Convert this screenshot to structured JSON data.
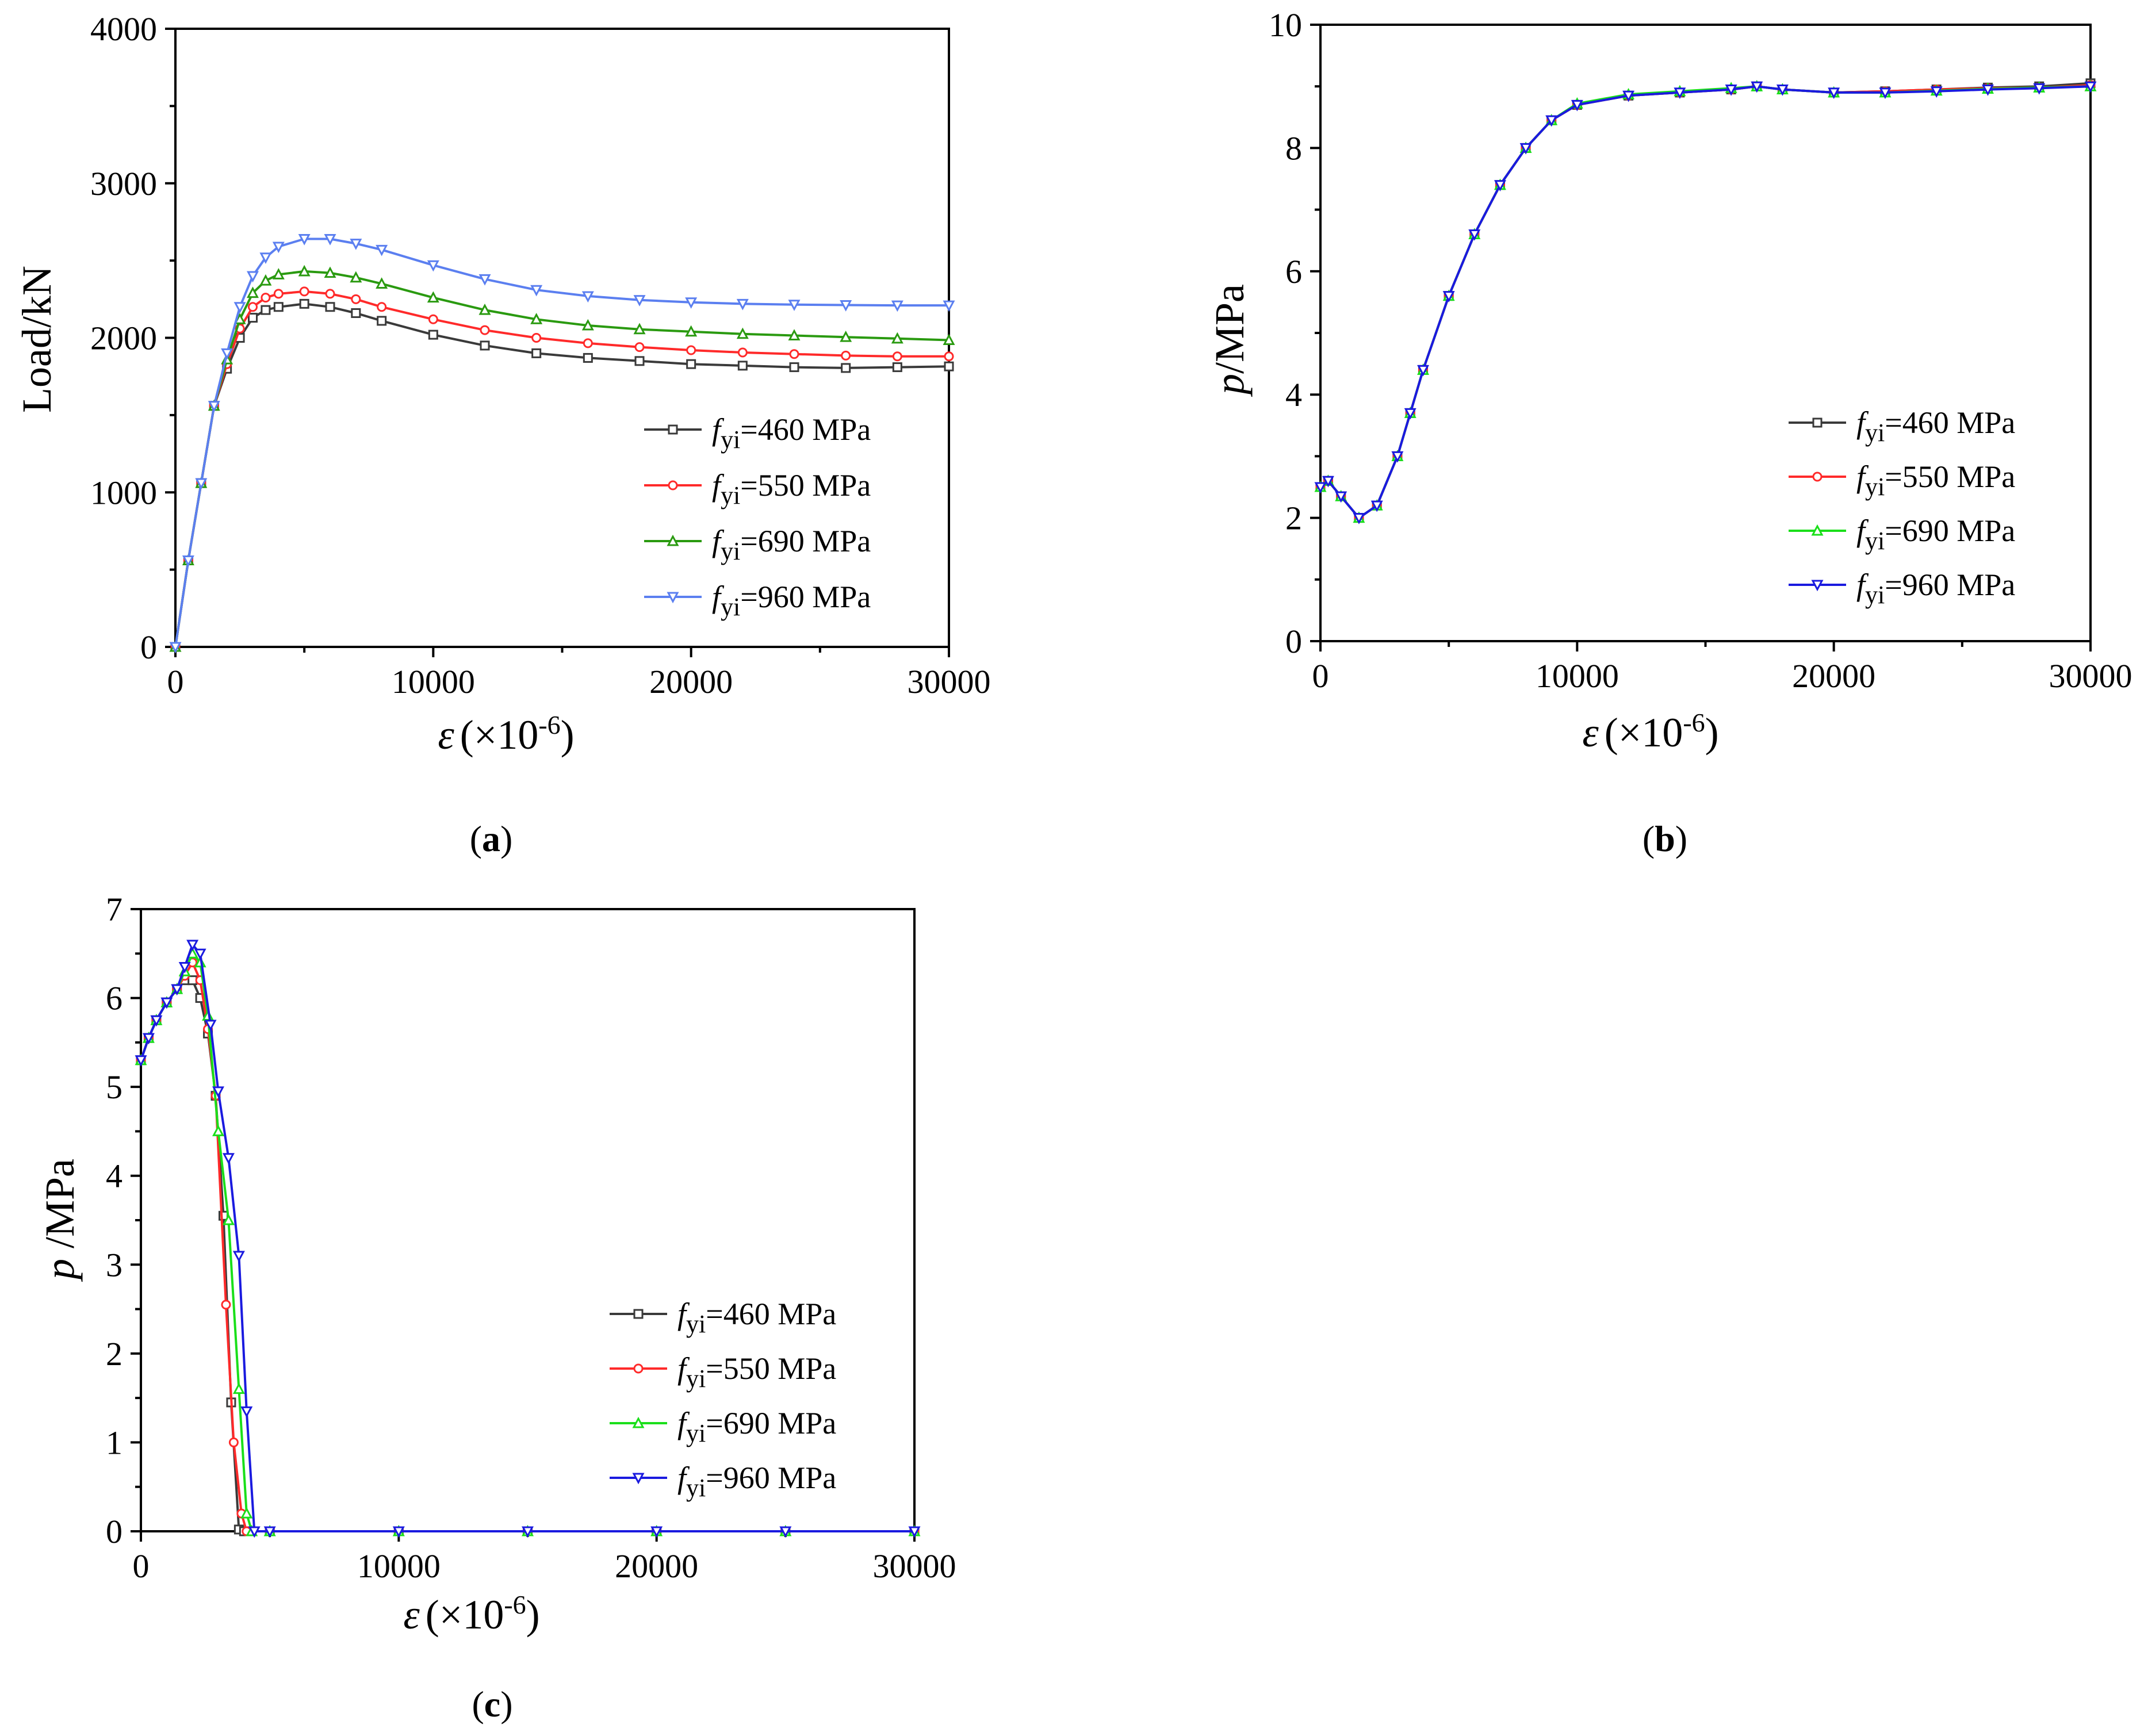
{
  "chart_data": [
    {
      "type": "line",
      "panel": "a",
      "panel_label": "a",
      "ylabel": "Load/kN",
      "xlabel_symbol": "ε",
      "xlabel_unit": "(×10",
      "xlabel_exp": "-6",
      "xlim": [
        0,
        30000
      ],
      "ylim": [
        0,
        4000
      ],
      "x_ticks": [
        0,
        10000,
        20000,
        30000
      ],
      "y_ticks": [
        0,
        1000,
        2000,
        3000,
        4000
      ],
      "legend_position": "center-right",
      "series": [
        {
          "name_sym": "f",
          "name_sub": "yi",
          "name_val": "=460 MPa",
          "color": "#3a3a3a",
          "marker": "square",
          "x": [
            0,
            500,
            1000,
            1500,
            2000,
            2500,
            3000,
            3500,
            4000,
            5000,
            6000,
            7000,
            8000,
            10000,
            12000,
            14000,
            16000,
            18000,
            20000,
            22000,
            24000,
            26000,
            28000,
            30000
          ],
          "y": [
            0,
            560,
            1060,
            1560,
            1800,
            2000,
            2130,
            2180,
            2200,
            2220,
            2200,
            2160,
            2110,
            2020,
            1950,
            1900,
            1870,
            1850,
            1830,
            1820,
            1810,
            1805,
            1810,
            1815
          ]
        },
        {
          "name_sym": "f",
          "name_sub": "yi",
          "name_val": "=550 MPa",
          "color": "#ff2a2a",
          "marker": "circle",
          "x": [
            0,
            500,
            1000,
            1500,
            2000,
            2500,
            3000,
            3500,
            4000,
            5000,
            6000,
            7000,
            8000,
            10000,
            12000,
            14000,
            16000,
            18000,
            20000,
            22000,
            24000,
            26000,
            28000,
            30000
          ],
          "y": [
            0,
            560,
            1060,
            1560,
            1830,
            2060,
            2200,
            2260,
            2285,
            2300,
            2285,
            2250,
            2200,
            2120,
            2050,
            2000,
            1965,
            1940,
            1920,
            1905,
            1895,
            1885,
            1880,
            1880
          ]
        },
        {
          "name_sym": "f",
          "name_sub": "yi",
          "name_val": "=690 MPa",
          "color": "#2a9a10",
          "marker": "triangle-up",
          "x": [
            0,
            500,
            1000,
            1500,
            2000,
            2500,
            3000,
            3500,
            4000,
            5000,
            6000,
            7000,
            8000,
            10000,
            12000,
            14000,
            16000,
            18000,
            20000,
            22000,
            24000,
            26000,
            28000,
            30000
          ],
          "y": [
            0,
            560,
            1060,
            1560,
            1860,
            2120,
            2290,
            2370,
            2410,
            2430,
            2420,
            2390,
            2350,
            2260,
            2180,
            2120,
            2080,
            2055,
            2040,
            2025,
            2015,
            2005,
            1995,
            1985
          ]
        },
        {
          "name_sym": "f",
          "name_sub": "yi",
          "name_val": "=960 MPa",
          "color": "#5b7ff0",
          "marker": "triangle-down",
          "x": [
            0,
            500,
            1000,
            1500,
            2000,
            2500,
            3000,
            3500,
            4000,
            5000,
            6000,
            7000,
            8000,
            10000,
            12000,
            14000,
            16000,
            18000,
            20000,
            22000,
            24000,
            26000,
            28000,
            30000
          ],
          "y": [
            0,
            560,
            1060,
            1560,
            1900,
            2200,
            2400,
            2520,
            2590,
            2640,
            2640,
            2610,
            2570,
            2470,
            2380,
            2310,
            2270,
            2245,
            2230,
            2220,
            2215,
            2212,
            2210,
            2210
          ]
        }
      ]
    },
    {
      "type": "line",
      "panel": "b",
      "panel_label": "b",
      "ylabel_sym": "p",
      "ylabel": "/MPa",
      "xlabel_symbol": "ε",
      "xlabel_unit": "(×10",
      "xlabel_exp": "-6",
      "xlim": [
        0,
        30000
      ],
      "ylim": [
        0,
        10
      ],
      "x_ticks": [
        0,
        10000,
        20000,
        30000
      ],
      "y_ticks": [
        0,
        2,
        4,
        6,
        8,
        10
      ],
      "legend_position": "center-right",
      "series": [
        {
          "name_sym": "f",
          "name_sub": "yi",
          "name_val": "=460 MPa",
          "color": "#3a3a3a",
          "marker": "square",
          "x": [
            0,
            300,
            800,
            1500,
            2200,
            3000,
            3500,
            4000,
            5000,
            6000,
            7000,
            8000,
            9000,
            10000,
            12000,
            14000,
            16000,
            17000,
            18000,
            20000,
            22000,
            24000,
            26000,
            28000,
            30000
          ],
          "y": [
            2.5,
            2.6,
            2.35,
            2.0,
            2.2,
            3.0,
            3.7,
            4.4,
            5.6,
            6.6,
            7.4,
            8.0,
            8.45,
            8.7,
            8.85,
            8.9,
            8.95,
            9.0,
            8.95,
            8.9,
            8.92,
            8.95,
            8.98,
            9.0,
            9.05
          ]
        },
        {
          "name_sym": "f",
          "name_sub": "yi",
          "name_val": "=550 MPa",
          "color": "#ff2a2a",
          "marker": "circle",
          "x": [
            0,
            300,
            800,
            1500,
            2200,
            3000,
            3500,
            4000,
            5000,
            6000,
            7000,
            8000,
            9000,
            10000,
            12000,
            14000,
            16000,
            17000,
            18000,
            20000,
            22000,
            24000,
            26000,
            28000,
            30000
          ],
          "y": [
            2.5,
            2.6,
            2.35,
            2.0,
            2.2,
            3.0,
            3.7,
            4.4,
            5.6,
            6.6,
            7.4,
            8.0,
            8.45,
            8.7,
            8.85,
            8.9,
            8.95,
            9.0,
            8.95,
            8.9,
            8.92,
            8.95,
            8.97,
            8.98,
            9.02
          ]
        },
        {
          "name_sym": "f",
          "name_sub": "yi",
          "name_val": "=690 MPa",
          "color": "#1adf1a",
          "marker": "triangle-up",
          "x": [
            0,
            300,
            800,
            1500,
            2200,
            3000,
            3500,
            4000,
            5000,
            6000,
            7000,
            8000,
            9000,
            10000,
            12000,
            14000,
            16000,
            17000,
            18000,
            20000,
            22000,
            24000,
            26000,
            28000,
            30000
          ],
          "y": [
            2.5,
            2.6,
            2.35,
            2.0,
            2.2,
            3.0,
            3.7,
            4.4,
            5.6,
            6.6,
            7.4,
            8.0,
            8.45,
            8.72,
            8.87,
            8.92,
            8.97,
            9.0,
            8.95,
            8.9,
            8.9,
            8.93,
            8.96,
            8.98,
            9.0
          ]
        },
        {
          "name_sym": "f",
          "name_sub": "yi",
          "name_val": "=960 MPa",
          "color": "#1a1adf",
          "marker": "triangle-down",
          "x": [
            0,
            300,
            800,
            1500,
            2200,
            3000,
            3500,
            4000,
            5000,
            6000,
            7000,
            8000,
            9000,
            10000,
            12000,
            14000,
            16000,
            17000,
            18000,
            20000,
            22000,
            24000,
            26000,
            28000,
            30000
          ],
          "y": [
            2.5,
            2.6,
            2.35,
            2.0,
            2.2,
            3.0,
            3.7,
            4.4,
            5.6,
            6.6,
            7.4,
            8.0,
            8.45,
            8.7,
            8.85,
            8.9,
            8.95,
            9.0,
            8.95,
            8.9,
            8.9,
            8.92,
            8.95,
            8.97,
            9.0
          ]
        }
      ]
    },
    {
      "type": "line",
      "panel": "c",
      "panel_label": "c",
      "ylabel_sym": "p",
      "ylabel": " /MPa",
      "xlabel_symbol": "ε",
      "xlabel_unit": "(×10",
      "xlabel_exp": "-6",
      "xlim": [
        0,
        30000
      ],
      "ylim": [
        0,
        7
      ],
      "x_ticks": [
        0,
        10000,
        20000,
        30000
      ],
      "y_ticks": [
        0,
        1,
        2,
        3,
        4,
        5,
        6,
        7
      ],
      "legend_position": "center-right",
      "series": [
        {
          "name_sym": "f",
          "name_sub": "yi",
          "name_val": "=460 MPa",
          "color": "#3a3a3a",
          "marker": "square",
          "x": [
            0,
            300,
            600,
            1000,
            1400,
            1700,
            2000,
            2300,
            2600,
            2900,
            3200,
            3500,
            3800,
            4000,
            5000,
            10000,
            15000,
            20000,
            25000,
            30000
          ],
          "y": [
            5.3,
            5.55,
            5.75,
            5.95,
            6.1,
            6.2,
            6.2,
            6.0,
            5.6,
            4.9,
            3.55,
            1.45,
            0.02,
            0,
            0,
            0,
            0,
            0,
            0,
            0
          ]
        },
        {
          "name_sym": "f",
          "name_sub": "yi",
          "name_val": "=550 MPa",
          "color": "#ff2a2a",
          "marker": "circle",
          "x": [
            0,
            300,
            600,
            1000,
            1400,
            1700,
            2000,
            2300,
            2600,
            2900,
            3300,
            3600,
            3900,
            4100,
            5000,
            10000,
            15000,
            20000,
            25000,
            30000
          ],
          "y": [
            5.3,
            5.55,
            5.75,
            5.95,
            6.1,
            6.25,
            6.4,
            6.2,
            5.65,
            4.9,
            2.55,
            1.0,
            0.2,
            0,
            0,
            0,
            0,
            0,
            0,
            0
          ]
        },
        {
          "name_sym": "f",
          "name_sub": "yi",
          "name_val": "=690 MPa",
          "color": "#1adf1a",
          "marker": "triangle-up",
          "x": [
            0,
            300,
            600,
            1000,
            1400,
            1700,
            2000,
            2300,
            2600,
            3000,
            3400,
            3800,
            4100,
            4300,
            5000,
            10000,
            15000,
            20000,
            25000,
            30000
          ],
          "y": [
            5.3,
            5.55,
            5.75,
            5.95,
            6.1,
            6.3,
            6.5,
            6.4,
            5.8,
            4.5,
            3.5,
            1.6,
            0.2,
            0,
            0,
            0,
            0,
            0,
            0,
            0
          ]
        },
        {
          "name_sym": "f",
          "name_sub": "yi",
          "name_val": "=960 MPa",
          "color": "#1a1adf",
          "marker": "triangle-down",
          "x": [
            0,
            300,
            600,
            1000,
            1400,
            1700,
            2000,
            2300,
            2700,
            3000,
            3400,
            3800,
            4100,
            4400,
            5000,
            10000,
            15000,
            20000,
            25000,
            30000
          ],
          "y": [
            5.3,
            5.55,
            5.75,
            5.95,
            6.1,
            6.35,
            6.6,
            6.5,
            5.7,
            4.95,
            4.2,
            3.1,
            1.35,
            0,
            0,
            0,
            0,
            0,
            0,
            0
          ]
        }
      ]
    }
  ]
}
